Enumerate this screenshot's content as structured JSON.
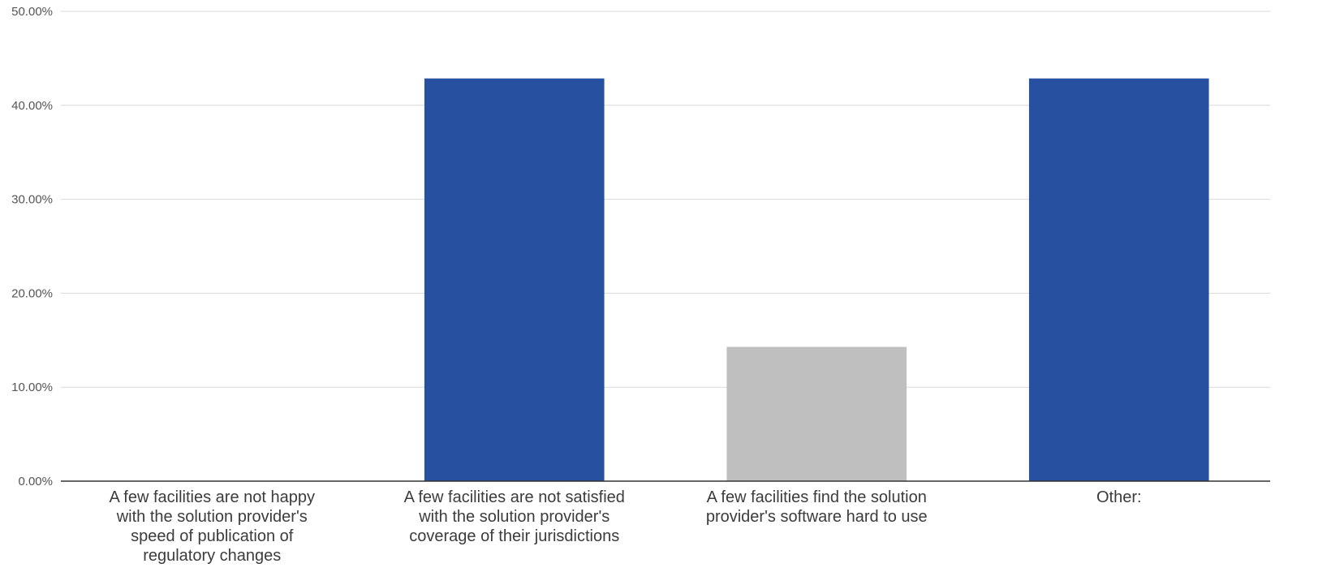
{
  "chart_data": {
    "type": "bar",
    "title": "",
    "xlabel": "",
    "ylabel": "",
    "categories": [
      "A few facilities are not happy\nwith the solution provider's\nspeed of publication of\nregulatory changes",
      "A few facilities are not satisfied\nwith the solution provider's\ncoverage of their jurisdictions",
      "A few facilities find the solution\nprovider's software hard to use",
      "Other:"
    ],
    "values": [
      0.0,
      42.86,
      14.29,
      42.86
    ],
    "bar_colors": [
      "#2751a0",
      "#2751a0",
      "#bfbfbf",
      "#2751a0"
    ],
    "ylim": [
      0,
      50
    ],
    "yticks": [
      0,
      10,
      20,
      30,
      40,
      50
    ],
    "ytick_labels": [
      "0.00%",
      "10.00%",
      "20.00%",
      "30.00%",
      "40.00%",
      "50.00%"
    ],
    "grid": true,
    "legend": "none"
  },
  "colors": {
    "accent": "#2751a0",
    "secondary": "#bfbfbf",
    "grid": "#d9d9d9",
    "axis": "#333333"
  }
}
